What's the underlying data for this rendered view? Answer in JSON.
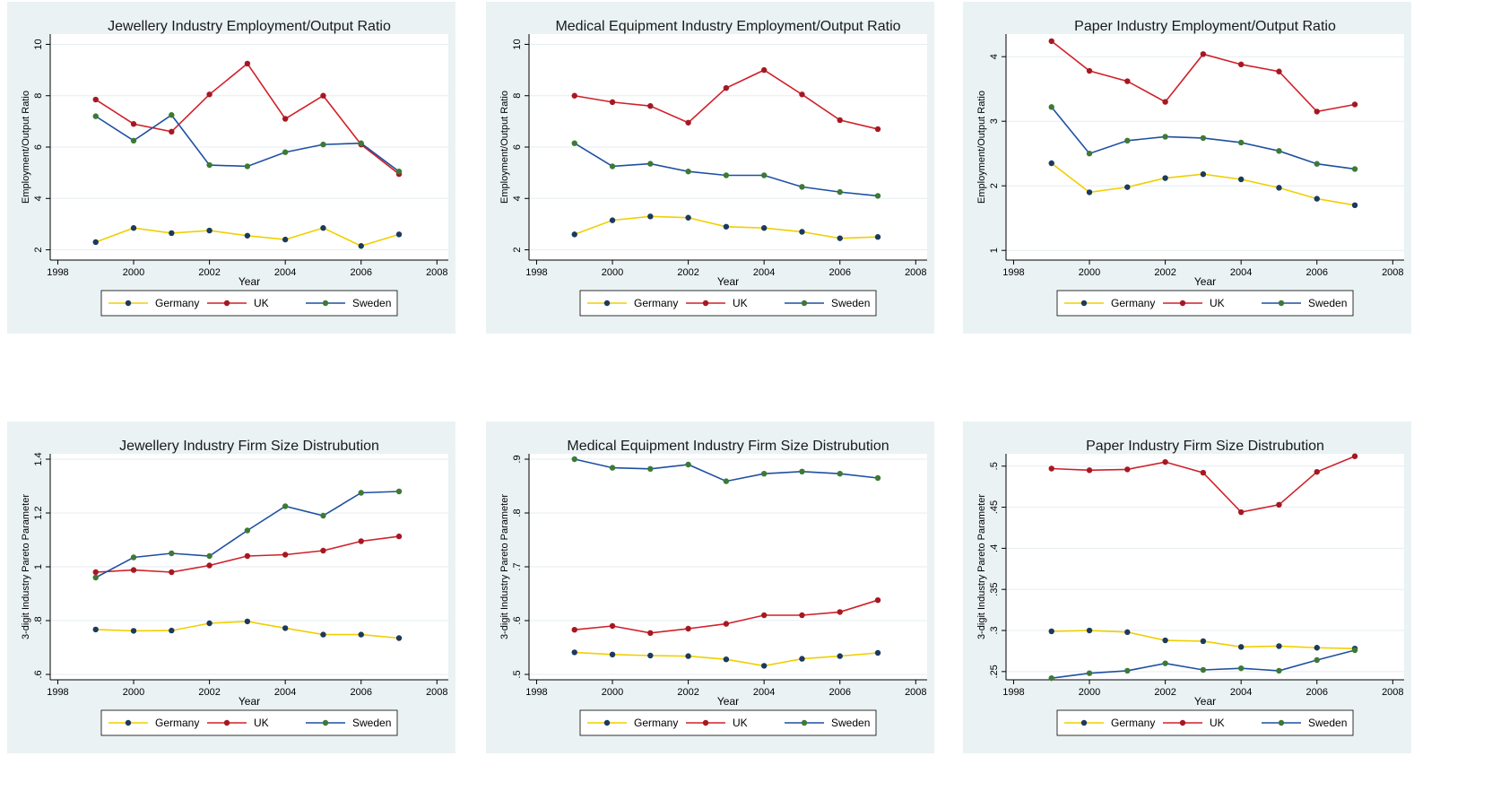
{
  "chart_data": [
    {
      "type": "line",
      "title": "Jewellery Industry Employment/Output Ratio",
      "x_label": "Year",
      "y_label": "Employment/Output Ratio",
      "x": [
        1999,
        2000,
        2001,
        2002,
        2003,
        2004,
        2005,
        2006,
        2007
      ],
      "xlim": [
        1997.8,
        2008.3
      ],
      "xticks": [
        1998,
        2000,
        2002,
        2004,
        2006,
        2008
      ],
      "ylim": [
        1.6,
        10.4
      ],
      "yticks": [
        2,
        4,
        6,
        8,
        10
      ],
      "grid": true,
      "legend": "bottom",
      "series": [
        {
          "name": "Germany",
          "color": "#f0cf00",
          "marker_color": "#1b3a5e",
          "values": [
            2.3,
            2.85,
            2.65,
            2.75,
            2.55,
            2.4,
            2.85,
            2.15,
            2.6
          ]
        },
        {
          "name": "UK",
          "color": "#d0202a",
          "marker_color": "#a51822",
          "values": [
            7.85,
            6.9,
            6.6,
            8.05,
            9.25,
            7.1,
            8.0,
            6.1,
            4.95
          ]
        },
        {
          "name": "Sweden",
          "color": "#1f4fa0",
          "marker_color": "#3d7a35",
          "values": [
            7.2,
            6.25,
            7.25,
            5.3,
            5.25,
            5.8,
            6.1,
            6.15,
            5.05
          ]
        }
      ]
    },
    {
      "type": "line",
      "title": "Medical Equipment Industry Employment/Output Ratio",
      "x_label": "Year",
      "y_label": "Employment/Output Ratio",
      "x": [
        1999,
        2000,
        2001,
        2002,
        2003,
        2004,
        2005,
        2006,
        2007
      ],
      "xlim": [
        1997.8,
        2008.3
      ],
      "xticks": [
        1998,
        2000,
        2002,
        2004,
        2006,
        2008
      ],
      "ylim": [
        1.6,
        10.4
      ],
      "yticks": [
        2,
        4,
        6,
        8,
        10
      ],
      "grid": true,
      "legend": "bottom",
      "series": [
        {
          "name": "Germany",
          "color": "#f0cf00",
          "marker_color": "#1b3a5e",
          "values": [
            2.6,
            3.15,
            3.3,
            3.25,
            2.9,
            2.85,
            2.7,
            2.45,
            2.5
          ]
        },
        {
          "name": "UK",
          "color": "#d0202a",
          "marker_color": "#a51822",
          "values": [
            8.0,
            7.75,
            7.6,
            6.95,
            8.3,
            9.0,
            8.05,
            7.05,
            6.7
          ]
        },
        {
          "name": "Sweden",
          "color": "#1f4fa0",
          "marker_color": "#3d7a35",
          "values": [
            6.15,
            5.25,
            5.35,
            5.05,
            4.9,
            4.9,
            4.45,
            4.25,
            4.1
          ]
        }
      ]
    },
    {
      "type": "line",
      "title": "Paper Industry Employment/Output Ratio",
      "x_label": "Year",
      "y_label": "Employment/Output Ratio",
      "x": [
        1999,
        2000,
        2001,
        2002,
        2003,
        2004,
        2005,
        2006,
        2007
      ],
      "xlim": [
        1997.8,
        2008.3
      ],
      "xticks": [
        1998,
        2000,
        2002,
        2004,
        2006,
        2008
      ],
      "ylim": [
        0.85,
        4.35
      ],
      "yticks": [
        1,
        2,
        3,
        4
      ],
      "grid": true,
      "legend": "bottom",
      "series": [
        {
          "name": "Germany",
          "color": "#f0cf00",
          "marker_color": "#1b3a5e",
          "values": [
            2.35,
            1.9,
            1.98,
            2.12,
            2.18,
            2.1,
            1.97,
            1.8,
            1.7
          ]
        },
        {
          "name": "UK",
          "color": "#d0202a",
          "marker_color": "#a51822",
          "values": [
            4.24,
            3.78,
            3.62,
            3.3,
            4.04,
            3.88,
            3.77,
            3.15,
            3.26
          ]
        },
        {
          "name": "Sweden",
          "color": "#1f4fa0",
          "marker_color": "#3d7a35",
          "values": [
            3.22,
            2.5,
            2.7,
            2.76,
            2.74,
            2.67,
            2.54,
            2.34,
            2.26
          ]
        }
      ]
    },
    {
      "type": "line",
      "title": "Jewellery Industry Firm Size Distrubution",
      "x_label": "Year",
      "y_label": "3-digit Industry Pareto Parameter",
      "x": [
        1999,
        2000,
        2001,
        2002,
        2003,
        2004,
        2005,
        2006,
        2007
      ],
      "xlim": [
        1997.8,
        2008.3
      ],
      "xticks": [
        1998,
        2000,
        2002,
        2004,
        2006,
        2008
      ],
      "ylim": [
        0.58,
        1.42
      ],
      "yticks": [
        {
          "value": 0.6,
          "label": ".6"
        },
        {
          "value": 0.8,
          "label": ".8"
        },
        1,
        1.2,
        1.4
      ],
      "grid": true,
      "legend": "bottom",
      "series": [
        {
          "name": "Germany",
          "color": "#f0cf00",
          "marker_color": "#1b3a5e",
          "values": [
            0.767,
            0.762,
            0.763,
            0.79,
            0.797,
            0.772,
            0.748,
            0.748,
            0.735
          ]
        },
        {
          "name": "UK",
          "color": "#d0202a",
          "marker_color": "#a51822",
          "values": [
            0.98,
            0.988,
            0.98,
            1.005,
            1.04,
            1.045,
            1.06,
            1.095,
            1.113
          ]
        },
        {
          "name": "Sweden",
          "color": "#1f4fa0",
          "marker_color": "#3d7a35",
          "values": [
            0.96,
            1.035,
            1.05,
            1.04,
            1.135,
            1.225,
            1.19,
            1.275,
            1.28
          ]
        }
      ]
    },
    {
      "type": "line",
      "title": "Medical Equipment Industry Firm Size Distrubution",
      "x_label": "Year",
      "y_label": "3-digit Industry Pareto Parameter",
      "x": [
        1999,
        2000,
        2001,
        2002,
        2003,
        2004,
        2005,
        2006,
        2007
      ],
      "xlim": [
        1997.8,
        2008.3
      ],
      "xticks": [
        1998,
        2000,
        2002,
        2004,
        2006,
        2008
      ],
      "ylim": [
        0.49,
        0.91
      ],
      "yticks": [
        {
          "value": 0.5,
          "label": ".5"
        },
        {
          "value": 0.6,
          "label": ".6"
        },
        {
          "value": 0.7,
          "label": ".7"
        },
        {
          "value": 0.8,
          "label": ".8"
        },
        {
          "value": 0.9,
          "label": ".9"
        }
      ],
      "grid": true,
      "legend": "bottom",
      "series": [
        {
          "name": "Germany",
          "color": "#f0cf00",
          "marker_color": "#1b3a5e",
          "values": [
            0.541,
            0.537,
            0.535,
            0.534,
            0.528,
            0.516,
            0.529,
            0.534,
            0.54
          ]
        },
        {
          "name": "UK",
          "color": "#d0202a",
          "marker_color": "#a51822",
          "values": [
            0.583,
            0.59,
            0.577,
            0.585,
            0.594,
            0.61,
            0.61,
            0.616,
            0.638
          ]
        },
        {
          "name": "Sweden",
          "color": "#1f4fa0",
          "marker_color": "#3d7a35",
          "values": [
            0.9,
            0.884,
            0.882,
            0.89,
            0.859,
            0.873,
            0.877,
            0.873,
            0.865
          ]
        }
      ]
    },
    {
      "type": "line",
      "title": "Paper Industry Firm Size Distrubution",
      "x_label": "Year",
      "y_label": "3-digit Industry Pareto Parameter",
      "x": [
        1999,
        2000,
        2001,
        2002,
        2003,
        2004,
        2005,
        2006,
        2007
      ],
      "xlim": [
        1997.8,
        2008.3
      ],
      "xticks": [
        1998,
        2000,
        2002,
        2004,
        2006,
        2008
      ],
      "ylim": [
        0.24,
        0.515
      ],
      "yticks": [
        {
          "value": 0.25,
          "label": ".25"
        },
        {
          "value": 0.3,
          "label": ".3"
        },
        {
          "value": 0.35,
          "label": ".35"
        },
        {
          "value": 0.4,
          "label": ".4"
        },
        {
          "value": 0.45,
          "label": ".45"
        },
        {
          "value": 0.5,
          "label": ".5"
        }
      ],
      "grid": true,
      "legend": "bottom",
      "series": [
        {
          "name": "Germany",
          "color": "#f0cf00",
          "marker_color": "#1b3a5e",
          "values": [
            0.299,
            0.3,
            0.298,
            0.288,
            0.287,
            0.28,
            0.281,
            0.279,
            0.278
          ]
        },
        {
          "name": "UK",
          "color": "#d0202a",
          "marker_color": "#a51822",
          "values": [
            0.497,
            0.495,
            0.496,
            0.505,
            0.492,
            0.444,
            0.453,
            0.493,
            0.512
          ]
        },
        {
          "name": "Sweden",
          "color": "#1f4fa0",
          "marker_color": "#3d7a35",
          "values": [
            0.242,
            0.248,
            0.251,
            0.26,
            0.252,
            0.254,
            0.251,
            0.264,
            0.276
          ]
        }
      ]
    }
  ]
}
